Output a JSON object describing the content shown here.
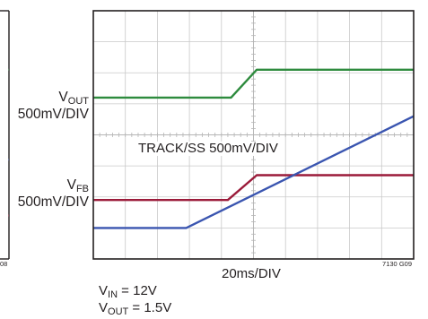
{
  "chart_data": {
    "type": "line",
    "xlabel": "20ms/DIV",
    "grid": true,
    "x_divisions": 10,
    "y_divisions": 8,
    "x_unit": "ms/DIV",
    "x_per_div": 20,
    "annotations": {
      "track": "TRACK/SS 500mV/DIV",
      "fig_id": "7130 G09",
      "left_panel_id": "08"
    },
    "channel_labels": [
      {
        "main": "V",
        "sub": "OUT",
        "scale": "500mV/DIV"
      },
      {
        "main": "V",
        "sub": "FB",
        "scale": "500mV/DIV"
      }
    ],
    "conditions": [
      {
        "main": "V",
        "sub": "IN",
        "rest": " = 12V"
      },
      {
        "main": "V",
        "sub": "OUT",
        "rest": " = 1.5V"
      }
    ],
    "series": [
      {
        "name": "V_OUT",
        "color": "#2e8b3e",
        "x_div": [
          0,
          4.3,
          5.1,
          10
        ],
        "y_div": [
          5.2,
          5.2,
          6.1,
          6.1
        ]
      },
      {
        "name": "V_FB",
        "color": "#9b1b3a",
        "x_div": [
          0,
          4.2,
          5.1,
          10
        ],
        "y_div": [
          1.9,
          1.9,
          2.7,
          2.7
        ]
      },
      {
        "name": "TRACK/SS",
        "color": "#3a55b0",
        "x_div": [
          0,
          2.9,
          10
        ],
        "y_div": [
          1.0,
          1.0,
          4.6
        ]
      }
    ]
  },
  "left_panel": {
    "traces": [
      {
        "color": "#2e8b3e",
        "x_div": [
          9.55,
          10
        ],
        "y_div": [
          6.1,
          6.1
        ]
      },
      {
        "color": "#3a55b0",
        "x_div": [
          9.55,
          10
        ],
        "y_div": [
          3.2,
          3.2
        ]
      },
      {
        "color": "#9b1b3a",
        "x_div": [
          9.55,
          10
        ],
        "y_div": [
          1.4,
          1.4
        ]
      }
    ]
  }
}
